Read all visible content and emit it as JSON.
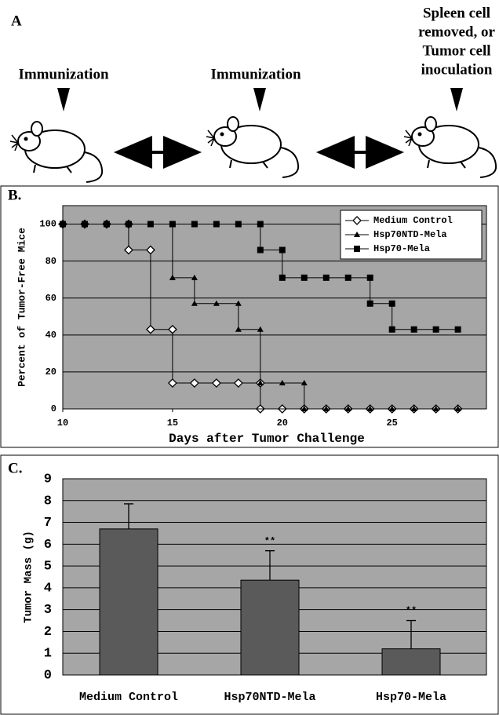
{
  "diagram": {
    "label": "A",
    "steps": [
      {
        "lines": [
          "Immunization"
        ]
      },
      {
        "lines": [
          "Immunization"
        ]
      },
      {
        "lines": [
          "Spleen cell",
          "removed, or",
          "Tumor cell",
          "inoculation"
        ]
      }
    ]
  },
  "chart_data": [
    {
      "type": "line",
      "label": "B.",
      "ylabel": "Percent of Tumor-Free Mice",
      "xlabel": "Days after Tumor Challenge",
      "xlim": [
        10,
        29.3
      ],
      "xticks": [
        10,
        15,
        20,
        25
      ],
      "ylim": [
        0,
        110
      ],
      "yticks": [
        0,
        20,
        40,
        60,
        80,
        100
      ],
      "grid": true,
      "legend": "upper right",
      "background": "#a6a6a6",
      "series": [
        {
          "name": "Medium Control",
          "color": "#000000",
          "marker": "diamond",
          "x": [
            10,
            11,
            12,
            13,
            13,
            14,
            14,
            15,
            15,
            16,
            17,
            18,
            19,
            19,
            20,
            21,
            22,
            23,
            24,
            25,
            26,
            27,
            28
          ],
          "values": [
            100,
            100,
            100,
            100,
            86,
            86,
            43,
            43,
            14,
            14,
            14,
            14,
            14,
            0,
            0,
            0,
            0,
            0,
            0,
            0,
            0,
            0,
            0
          ]
        },
        {
          "name": "Hsp70NTD-Mela",
          "color": "#000000",
          "marker": "triangle",
          "x": [
            10,
            11,
            12,
            13,
            14,
            15,
            15,
            16,
            16,
            17,
            18,
            18,
            19,
            19,
            20,
            21,
            21,
            22,
            23,
            24,
            25,
            26,
            27,
            28
          ],
          "values": [
            100,
            100,
            100,
            100,
            100,
            100,
            71,
            71,
            57,
            57,
            57,
            43,
            43,
            14,
            14,
            14,
            0,
            0,
            0,
            0,
            0,
            0,
            0,
            0
          ]
        },
        {
          "name": "Hsp70-Mela",
          "color": "#000000",
          "marker": "square",
          "x": [
            10,
            11,
            12,
            13,
            14,
            15,
            16,
            17,
            18,
            19,
            19,
            20,
            20,
            21,
            22,
            23,
            24,
            24,
            25,
            25,
            26,
            27,
            28
          ],
          "values": [
            100,
            100,
            100,
            100,
            100,
            100,
            100,
            100,
            100,
            100,
            86,
            86,
            71,
            71,
            71,
            71,
            71,
            57,
            57,
            43,
            43,
            43,
            43
          ]
        }
      ]
    },
    {
      "type": "bar",
      "label": "C.",
      "ylabel": "Tumor Mass (g)",
      "categories": [
        "Medium Control",
        "Hsp70NTD-Mela",
        "Hsp70-Mela"
      ],
      "values": [
        6.7,
        4.35,
        1.2
      ],
      "errors": [
        1.15,
        1.35,
        1.3
      ],
      "annotations": [
        null,
        "**",
        "**"
      ],
      "color": "#5a5a5a",
      "background": "#a6a6a6",
      "ylim": [
        0,
        9
      ],
      "yticks": [
        0,
        1,
        2,
        3,
        4,
        5,
        6,
        7,
        8,
        9
      ],
      "grid": true
    }
  ]
}
